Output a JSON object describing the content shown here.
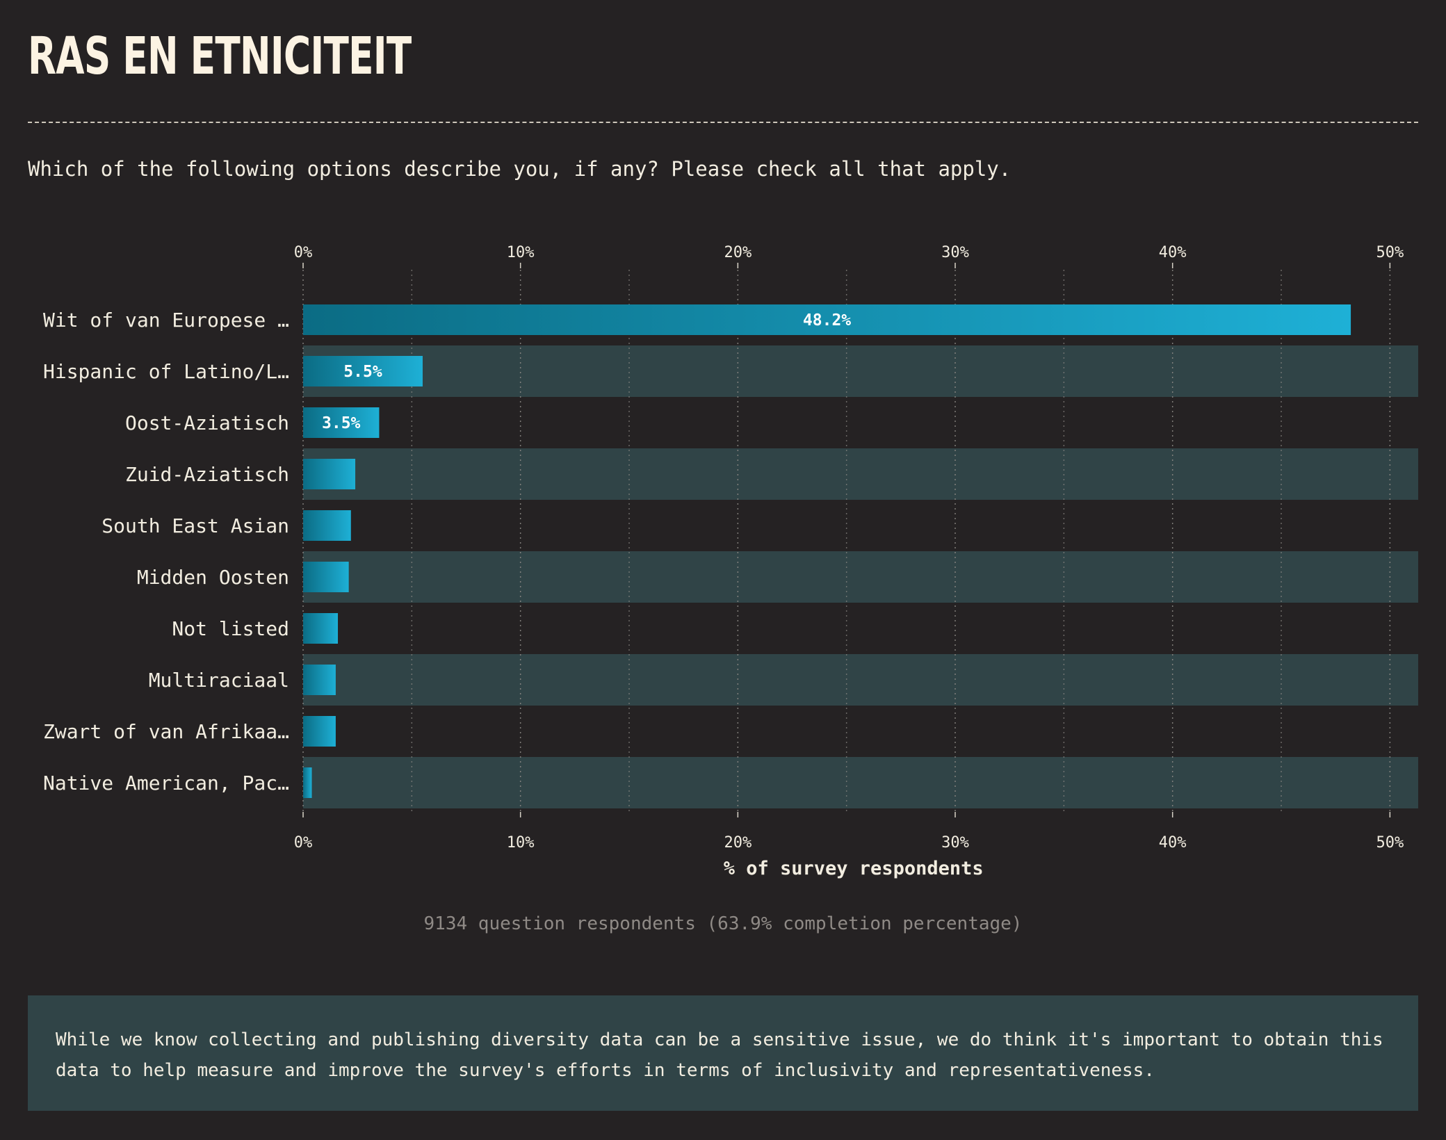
{
  "title": "RAS EN ETNICITEIT",
  "question": "Which of the following options describe you, if any? Please check all that apply.",
  "footnote": "9134 question respondents (63.9% completion percentage)",
  "note": "While we know collecting and publishing diversity data can be a sensitive issue, we do think it's important to obtain this data to help measure and improve the survey's efforts in terms of inclusivity and representativeness.",
  "colors": {
    "background": "#252223",
    "band": "#304447",
    "bar_start": "#0b6c84",
    "bar_end": "#1eb0d6",
    "text": "#f2ede0"
  },
  "chart_data": {
    "type": "bar",
    "orientation": "horizontal",
    "categories": [
      "Wit of van Europese …",
      "Hispanic of Latino/L…",
      "Oost-Aziatisch",
      "Zuid-Aziatisch",
      "South East Asian",
      "Midden Oosten",
      "Not listed",
      "Multiraciaal",
      "Zwart of van Afrikaa…",
      "Native American, Pac…"
    ],
    "values": [
      48.2,
      5.5,
      3.5,
      2.4,
      2.2,
      2.1,
      1.6,
      1.5,
      1.5,
      0.4
    ],
    "data_labels": [
      "48.2%",
      "5.5%",
      "3.5%",
      "",
      "",
      "",
      "",
      "",
      "",
      ""
    ],
    "xlim": [
      0,
      51.3
    ],
    "xticks": [
      0,
      10,
      20,
      30,
      40,
      50
    ],
    "xtick_labels": [
      "0%",
      "10%",
      "20%",
      "30%",
      "40%",
      "50%"
    ],
    "xlabel": "% of survey respondents",
    "ylabel": "",
    "grid": true,
    "axis_position": "top-and-bottom"
  }
}
